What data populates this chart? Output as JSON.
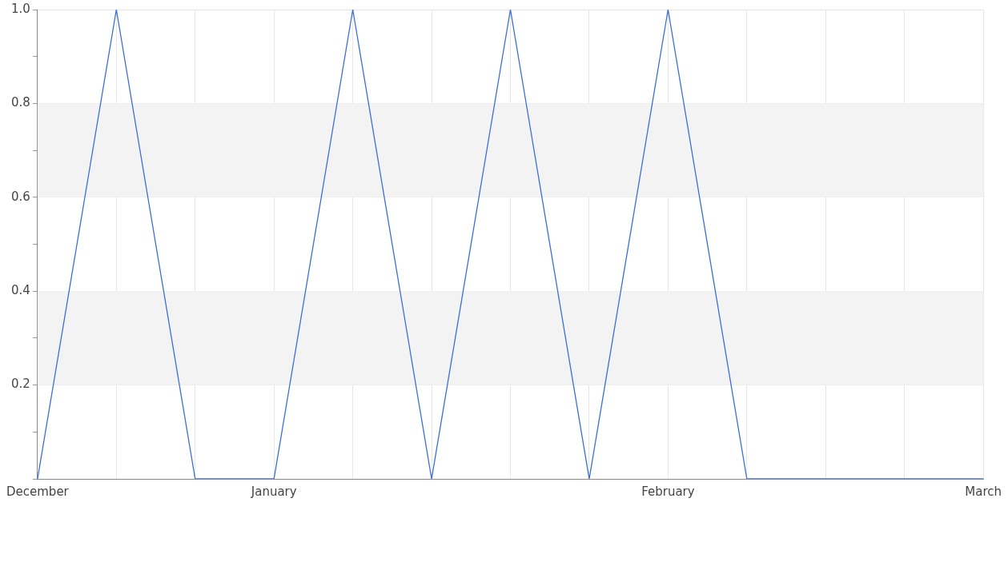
{
  "chart_data": {
    "type": "line",
    "categories": [
      "December",
      null,
      null,
      "January",
      null,
      null,
      null,
      null,
      "February",
      null,
      null,
      null,
      "March"
    ],
    "series": [
      {
        "color": "#3b6fd6",
        "values": [
          0,
          1,
          0,
          0,
          1,
          0,
          1,
          0,
          1,
          0,
          0,
          0,
          0
        ]
      }
    ],
    "ylim": [
      0,
      1
    ],
    "yticks": [
      {
        "value": 0,
        "label": null
      },
      {
        "value": 0.1,
        "label": null
      },
      0.2,
      {
        "value": 0.3,
        "label": null
      },
      0.4,
      {
        "value": 0.5,
        "label": null
      },
      0.6,
      {
        "value": 0.7,
        "label": null
      },
      0.8,
      {
        "value": 0.9,
        "label": null
      },
      {
        "value": 1,
        "label": "1.0"
      }
    ],
    "bands": [
      {
        "axis": "y",
        "from": 0.2,
        "to": 0.4,
        "color": "#f3f3f3"
      },
      {
        "axis": "y",
        "from": 0.6,
        "to": 0.8,
        "color": "#f3f3f3"
      }
    ],
    "grid": true,
    "legend": false,
    "marker": "none",
    "line_style": "solid"
  }
}
